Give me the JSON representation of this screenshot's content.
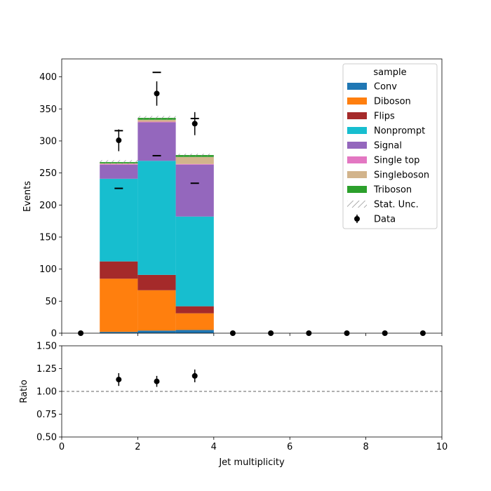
{
  "chart_data": [
    {
      "type": "bar",
      "panel": "main",
      "stacked": true,
      "xlabel": "",
      "ylabel": "Events",
      "xlim": [
        0,
        10
      ],
      "ylim": [
        0,
        428
      ],
      "x_ticks": [
        0,
        2,
        4,
        6,
        8,
        10
      ],
      "y_ticks": [
        0,
        50,
        100,
        150,
        200,
        250,
        300,
        350,
        400
      ],
      "bin_edges": [
        0,
        1,
        2,
        3,
        4,
        5,
        6,
        7,
        8,
        9,
        10
      ],
      "series": [
        {
          "name": "Conv",
          "color": "#1f77b4",
          "values": [
            0,
            2,
            4,
            5,
            0,
            0,
            0,
            0,
            0,
            0
          ]
        },
        {
          "name": "Diboson",
          "color": "#ff7f0e",
          "values": [
            0,
            83,
            63,
            26,
            0,
            0,
            0,
            0,
            0,
            0
          ]
        },
        {
          "name": "Flips",
          "color": "#a52a2a",
          "values": [
            0,
            27,
            24,
            11,
            0,
            0,
            0,
            0,
            0,
            0
          ]
        },
        {
          "name": "Nonprompt",
          "color": "#17becf",
          "values": [
            0,
            129,
            178,
            140,
            0,
            0,
            0,
            0,
            0,
            0
          ]
        },
        {
          "name": "Signal",
          "color": "#9467bd",
          "values": [
            0,
            22,
            60,
            81,
            0,
            0,
            0,
            0,
            0,
            0
          ]
        },
        {
          "name": "Single top",
          "color": "#e377c2",
          "values": [
            0,
            1,
            1,
            1,
            0,
            0,
            0,
            0,
            0,
            0
          ]
        },
        {
          "name": "Singleboson",
          "color": "#d2b48c",
          "values": [
            0,
            1,
            3,
            11,
            0,
            0,
            0,
            0,
            0,
            0
          ]
        },
        {
          "name": "Triboson",
          "color": "#2ca02c",
          "values": [
            0,
            2,
            3,
            3,
            0,
            0,
            0,
            0,
            0,
            0
          ]
        }
      ],
      "stat_unc": [
        0,
        3,
        3,
        2,
        0,
        0,
        0,
        0,
        0,
        0
      ],
      "data": {
        "name": "Data",
        "x": [
          0.5,
          1.5,
          2.5,
          3.5,
          4.5,
          5.5,
          6.5,
          7.5,
          8.5,
          9.5
        ],
        "y": [
          0,
          301,
          374,
          327,
          0,
          0,
          0,
          0,
          0,
          0
        ],
        "yerr": [
          0,
          17,
          19,
          18,
          0,
          0,
          0,
          0,
          0,
          0
        ]
      },
      "markers": [
        {
          "x": 1.5,
          "y": 316
        },
        {
          "x": 1.5,
          "y": 226
        },
        {
          "x": 2.5,
          "y": 407
        },
        {
          "x": 2.5,
          "y": 277
        },
        {
          "x": 3.5,
          "y": 335
        },
        {
          "x": 3.5,
          "y": 234
        }
      ],
      "legend": {
        "title": "sample",
        "location": "upper right",
        "entries": [
          {
            "label": "Conv",
            "kind": "patch",
            "color": "#1f77b4"
          },
          {
            "label": "Diboson",
            "kind": "patch",
            "color": "#ff7f0e"
          },
          {
            "label": "Flips",
            "kind": "patch",
            "color": "#a52a2a"
          },
          {
            "label": "Nonprompt",
            "kind": "patch",
            "color": "#17becf"
          },
          {
            "label": "Signal",
            "kind": "patch",
            "color": "#9467bd"
          },
          {
            "label": "Single top",
            "kind": "patch",
            "color": "#e377c2"
          },
          {
            "label": "Singleboson",
            "kind": "patch",
            "color": "#d2b48c"
          },
          {
            "label": "Triboson",
            "kind": "patch",
            "color": "#2ca02c"
          },
          {
            "label": "Stat. Unc.",
            "kind": "hatch",
            "color": "#808080"
          },
          {
            "label": "Data",
            "kind": "errorbar",
            "color": "#000000"
          }
        ]
      }
    },
    {
      "type": "scatter",
      "panel": "ratio",
      "xlabel": "Jet multiplicity",
      "ylabel": "Ratio",
      "xlim": [
        0,
        10
      ],
      "ylim": [
        0.5,
        1.5
      ],
      "x_ticks": [
        0,
        2,
        4,
        6,
        8,
        10
      ],
      "y_ticks": [
        "0.50",
        "0.75",
        "1.00",
        "1.25",
        "1.50"
      ],
      "reference_line": 1.0,
      "x": [
        1.5,
        2.5,
        3.5
      ],
      "y": [
        1.13,
        1.11,
        1.17
      ],
      "yerr": [
        0.07,
        0.06,
        0.07
      ]
    }
  ]
}
